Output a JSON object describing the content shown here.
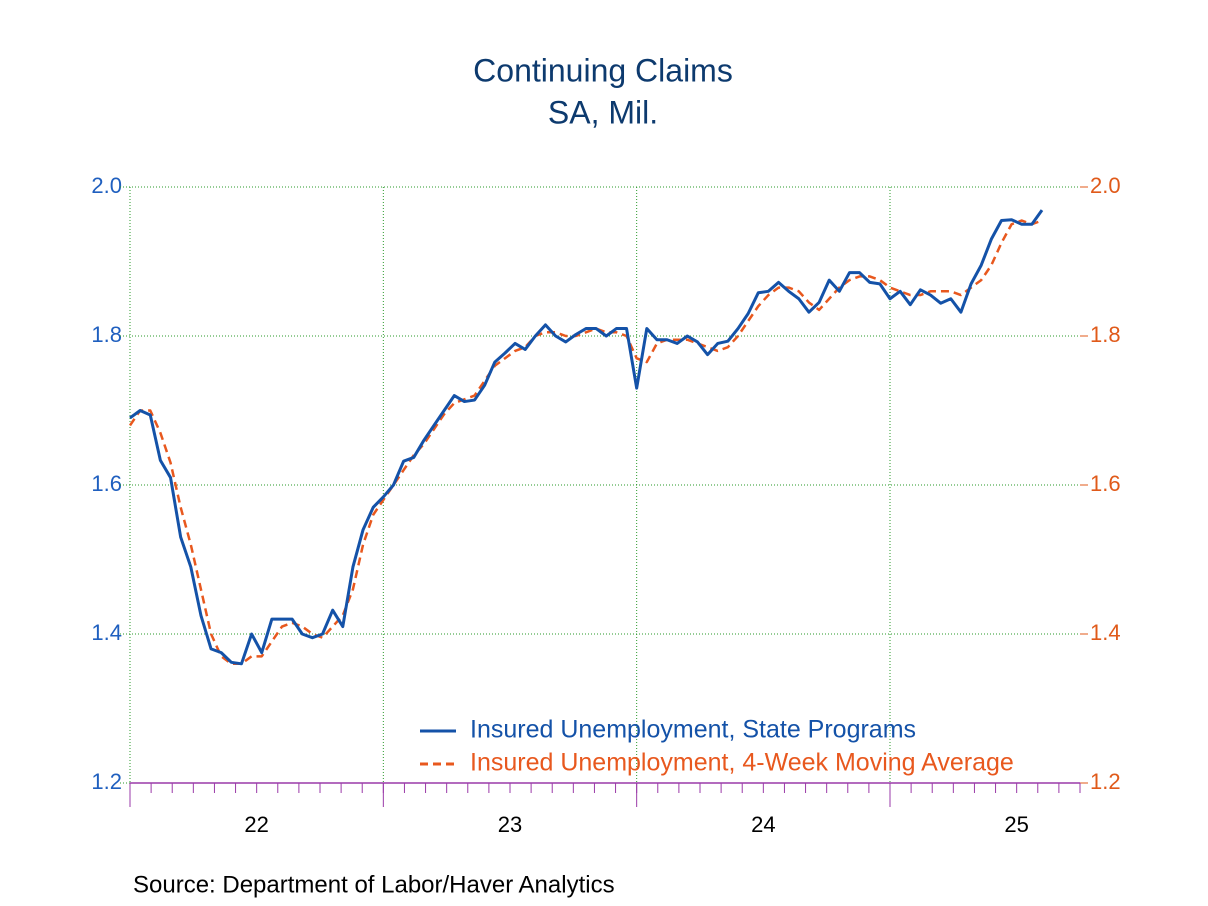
{
  "chart_data": {
    "type": "line",
    "title": "Continuing Claims",
    "subtitle": "SA, Mil.",
    "source": "Source:  Department of Labor/Haver Analytics",
    "x": [
      22.0,
      22.04,
      22.08,
      22.12,
      22.16,
      22.2,
      22.24,
      22.28,
      22.32,
      22.36,
      22.4,
      22.44,
      22.48,
      22.52,
      22.56,
      22.6,
      22.64,
      22.68,
      22.72,
      22.76,
      22.8,
      22.84,
      22.88,
      22.92,
      22.96,
      23.0,
      23.04,
      23.08,
      23.12,
      23.16,
      23.2,
      23.24,
      23.28,
      23.32,
      23.36,
      23.4,
      23.44,
      23.48,
      23.52,
      23.56,
      23.6,
      23.64,
      23.68,
      23.72,
      23.76,
      23.8,
      23.84,
      23.88,
      23.92,
      23.96,
      24.0,
      24.04,
      24.08,
      24.12,
      24.16,
      24.2,
      24.24,
      24.28,
      24.32,
      24.36,
      24.4,
      24.44,
      24.48,
      24.52,
      24.56,
      24.6,
      24.64,
      24.68,
      24.72,
      24.76,
      24.8,
      24.84,
      24.88,
      24.92,
      24.96,
      25.0,
      25.04,
      25.08,
      25.12,
      25.16,
      25.2,
      25.24,
      25.28,
      25.32,
      25.36,
      25.4,
      25.44,
      25.48,
      25.52,
      25.56,
      25.6
    ],
    "series": [
      {
        "name": "Insured Unemployment, State Programs",
        "color": "#1452a8",
        "dash": false,
        "values": [
          1.69,
          1.7,
          1.694,
          1.633,
          1.61,
          1.53,
          1.49,
          1.425,
          1.38,
          1.375,
          1.362,
          1.36,
          1.4,
          1.375,
          1.42,
          1.42,
          1.42,
          1.4,
          1.395,
          1.4,
          1.432,
          1.41,
          1.49,
          1.54,
          1.57,
          1.584,
          1.6,
          1.632,
          1.637,
          1.66,
          1.68,
          1.7,
          1.72,
          1.712,
          1.714,
          1.734,
          1.765,
          1.777,
          1.79,
          1.782,
          1.8,
          1.815,
          1.8,
          1.792,
          1.802,
          1.81,
          1.81,
          1.8,
          1.81,
          1.81,
          1.73,
          1.81,
          1.795,
          1.795,
          1.79,
          1.8,
          1.792,
          1.775,
          1.79,
          1.793,
          1.81,
          1.83,
          1.858,
          1.86,
          1.872,
          1.86,
          1.85,
          1.832,
          1.845,
          1.875,
          1.86,
          1.885,
          1.885,
          1.872,
          1.87,
          1.85,
          1.86,
          1.842,
          1.862,
          1.855,
          1.844,
          1.85,
          1.832,
          1.87,
          1.895,
          1.93,
          1.955,
          1.956,
          1.95,
          1.95,
          1.969
        ]
      },
      {
        "name": "Insured Unemployment, 4-Week Moving Average",
        "color": "#e8581e",
        "dash": true,
        "axis": "y2",
        "values": [
          1.68,
          1.7,
          1.7,
          1.67,
          1.63,
          1.57,
          1.52,
          1.46,
          1.4,
          1.37,
          1.36,
          1.36,
          1.37,
          1.37,
          1.39,
          1.41,
          1.415,
          1.41,
          1.4,
          1.395,
          1.41,
          1.425,
          1.46,
          1.52,
          1.56,
          1.58,
          1.6,
          1.62,
          1.64,
          1.655,
          1.675,
          1.695,
          1.71,
          1.715,
          1.72,
          1.74,
          1.76,
          1.77,
          1.78,
          1.785,
          1.8,
          1.805,
          1.805,
          1.8,
          1.8,
          1.805,
          1.81,
          1.805,
          1.805,
          1.8,
          1.77,
          1.765,
          1.79,
          1.795,
          1.795,
          1.795,
          1.79,
          1.785,
          1.78,
          1.785,
          1.8,
          1.82,
          1.84,
          1.855,
          1.865,
          1.865,
          1.86,
          1.845,
          1.835,
          1.85,
          1.865,
          1.875,
          1.88,
          1.88,
          1.875,
          1.865,
          1.86,
          1.855,
          1.855,
          1.86,
          1.86,
          1.86,
          1.855,
          1.865,
          1.875,
          1.895,
          1.925,
          1.95,
          1.955,
          1.95,
          1.955
        ]
      }
    ],
    "xlim": [
      22,
      25.75
    ],
    "xticks": [
      {
        "value": 22.5,
        "label": "22"
      },
      {
        "value": 23.5,
        "label": "23"
      },
      {
        "value": 24.5,
        "label": "24"
      },
      {
        "value": 25.5,
        "label": "25"
      }
    ],
    "xgrid": [
      22,
      23,
      24,
      25
    ],
    "ylim": [
      1.2,
      2.0
    ],
    "yticks": [
      1.2,
      1.4,
      1.6,
      1.8,
      {
        "value": 2.0,
        "label": "2.0"
      }
    ],
    "y2lim": [
      1.2,
      2.0
    ],
    "y2ticks": [
      1.2,
      1.4,
      1.6,
      1.8,
      {
        "value": 2.0,
        "label": "2.0"
      }
    ],
    "grid": true,
    "legend": "bottom-right"
  }
}
